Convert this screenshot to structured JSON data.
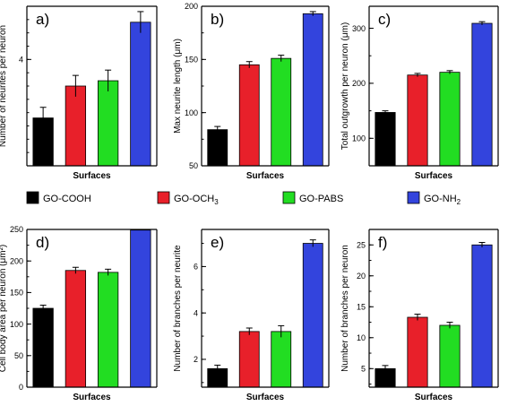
{
  "legend": [
    {
      "label": "GO-COOH",
      "sub": "",
      "color": "#000000"
    },
    {
      "label": "GO-OCH",
      "sub": "3",
      "color": "#e8202a"
    },
    {
      "label": "GO-PABS",
      "sub": "",
      "color": "#22dd22"
    },
    {
      "label": "GO-NH",
      "sub": "2",
      "color": "#3344dd"
    }
  ],
  "chart_data": [
    {
      "type": "bar",
      "panel": "a)",
      "categories": [
        "GO-COOH",
        "GO-OCH3",
        "GO-PABS",
        "GO-NH2"
      ],
      "values": [
        2.9,
        3.5,
        3.6,
        4.7
      ],
      "errors": [
        0.2,
        0.2,
        0.2,
        0.2
      ],
      "xlabel": "Surfaces",
      "ylabel": "Number of neurites per neuron",
      "ylim": [
        2.0,
        5.0
      ],
      "yticks": [
        {
          "v": 4,
          "t": "4"
        }
      ],
      "minor_step": 0.25
    },
    {
      "type": "bar",
      "panel": "b)",
      "categories": [
        "GO-COOH",
        "GO-OCH3",
        "GO-PABS",
        "GO-NH2"
      ],
      "values": [
        84,
        145,
        151,
        193
      ],
      "errors": [
        3,
        3,
        3,
        2
      ],
      "xlabel": "Surfaces",
      "ylabel": "Max neurite length (μm)",
      "ylim": [
        50,
        200
      ],
      "yticks": [
        {
          "v": 50,
          "t": "50"
        },
        {
          "v": 100,
          "t": "100"
        },
        {
          "v": 150,
          "t": "150"
        },
        {
          "v": 200,
          "t": "200"
        }
      ],
      "minor_step": 25
    },
    {
      "type": "bar",
      "panel": "c)",
      "categories": [
        "GO-COOH",
        "GO-OCH3",
        "GO-PABS",
        "GO-NH2"
      ],
      "values": [
        147,
        215,
        220,
        309
      ],
      "errors": [
        3,
        3,
        3,
        3
      ],
      "xlabel": "Surfaces",
      "ylabel": "Total outgrowth per neuron (μm)",
      "ylim": [
        50,
        340
      ],
      "yticks": [
        {
          "v": 100,
          "t": "100"
        },
        {
          "v": 200,
          "t": "200"
        },
        {
          "v": 300,
          "t": "300"
        }
      ],
      "minor_step": 50
    },
    {
      "type": "bar",
      "panel": "d)",
      "categories": [
        "GO-COOH",
        "GO-OCH3",
        "GO-PABS",
        "GO-NH2"
      ],
      "values": [
        125,
        185,
        182,
        249
      ],
      "errors": [
        5,
        5,
        5,
        0
      ],
      "xlabel": "Surfaces",
      "ylabel": "Cell body area per neuron (μm²)",
      "ylim": [
        0,
        250
      ],
      "yticks": [
        {
          "v": 0,
          "t": "0"
        },
        {
          "v": 50,
          "t": "50"
        },
        {
          "v": 100,
          "t": "100"
        },
        {
          "v": 150,
          "t": "150"
        },
        {
          "v": 200,
          "t": "200"
        },
        {
          "v": 250,
          "t": "250"
        }
      ],
      "minor_step": 25
    },
    {
      "type": "bar",
      "panel": "e)",
      "categories": [
        "GO-COOH",
        "GO-OCH3",
        "GO-PABS",
        "GO-NH2"
      ],
      "values": [
        1.6,
        3.2,
        3.2,
        7.0
      ],
      "errors": [
        0.15,
        0.15,
        0.25,
        0.15
      ],
      "xlabel": "Surfaces",
      "ylabel": "Number of branches per neurite",
      "ylim": [
        0.8,
        7.6
      ],
      "yticks": [
        {
          "v": 2,
          "t": "2"
        },
        {
          "v": 4,
          "t": "4"
        },
        {
          "v": 6,
          "t": "6"
        }
      ],
      "minor_step": 1
    },
    {
      "type": "bar",
      "panel": "f)",
      "categories": [
        "GO-COOH",
        "GO-OCH3",
        "GO-PABS",
        "GO-NH2"
      ],
      "values": [
        5,
        13.3,
        12,
        25
      ],
      "errors": [
        0.5,
        0.5,
        0.5,
        0.4
      ],
      "xlabel": "Surfaces",
      "ylabel": "Number of branches per neuron",
      "ylim": [
        2,
        27.5
      ],
      "yticks": [
        {
          "v": 5,
          "t": "5"
        },
        {
          "v": 10,
          "t": "10"
        },
        {
          "v": 15,
          "t": "15"
        },
        {
          "v": 20,
          "t": "20"
        },
        {
          "v": 25,
          "t": "25"
        }
      ],
      "minor_step": 2.5
    }
  ]
}
